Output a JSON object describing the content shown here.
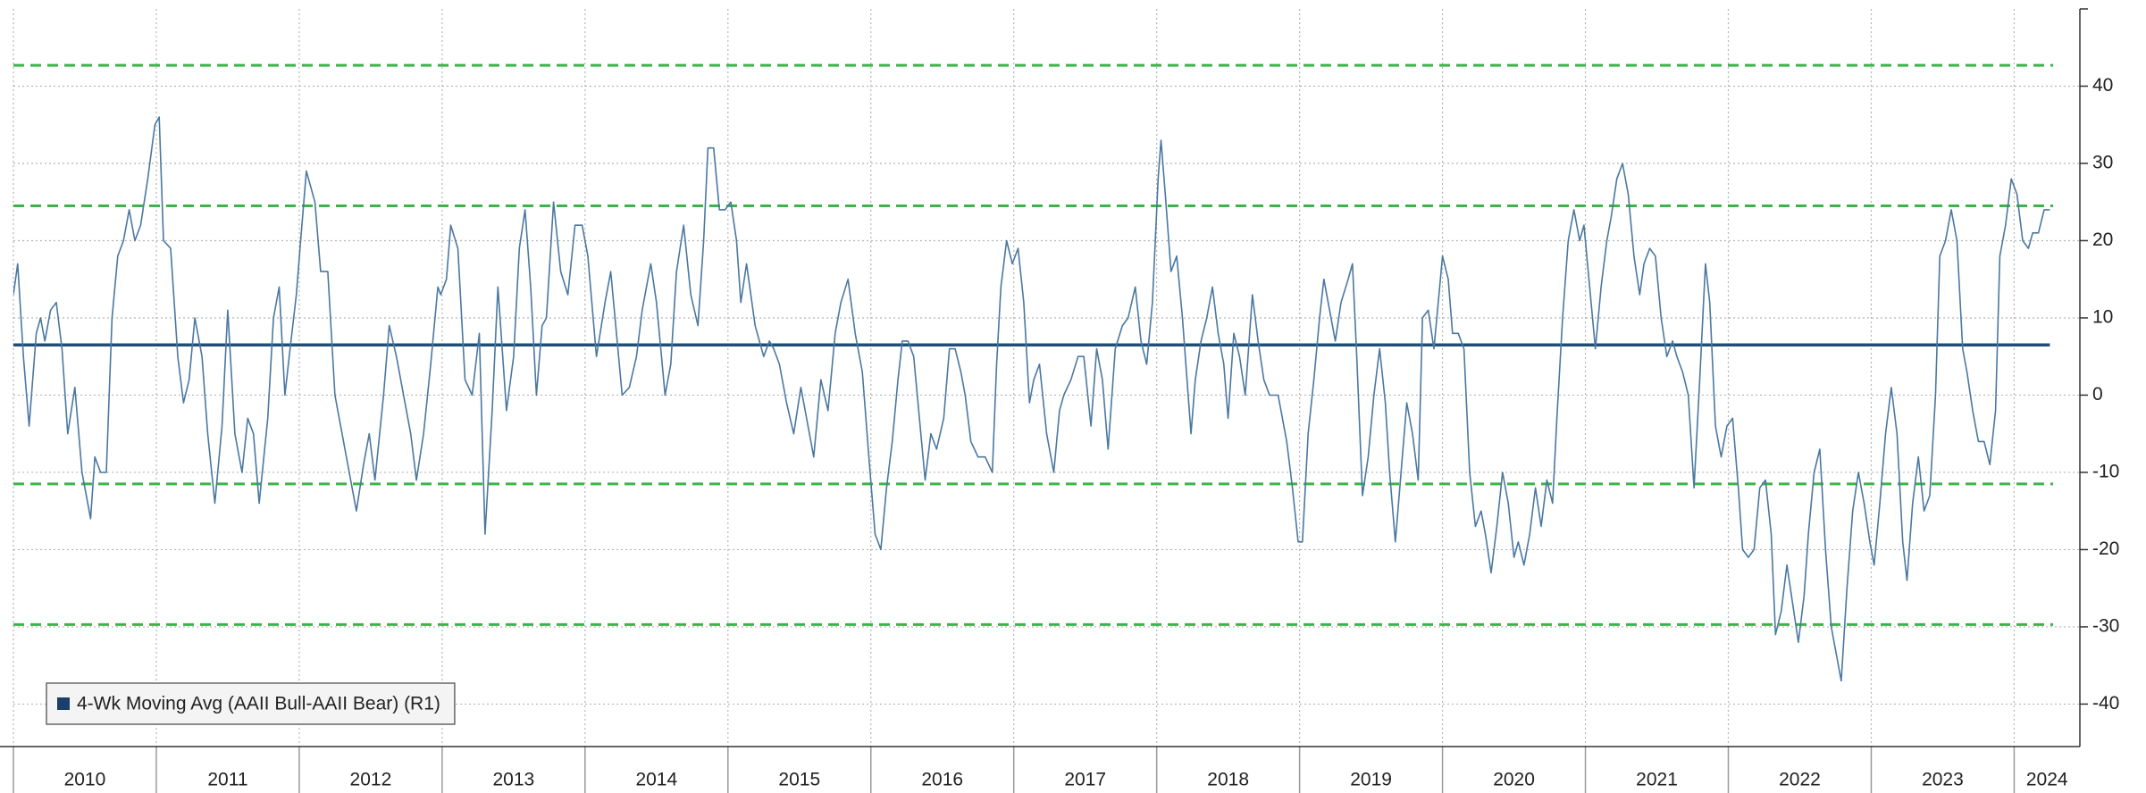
{
  "chart_data": {
    "type": "line",
    "xlim": [
      2010,
      2024.46
    ],
    "ylim": [
      -45.5,
      50
    ],
    "xticks": [
      2010,
      2011,
      2012,
      2013,
      2014,
      2015,
      2016,
      2017,
      2018,
      2019,
      2020,
      2021,
      2022,
      2023,
      2024
    ],
    "yticks": [
      -40,
      -30,
      -20,
      -10,
      0,
      10,
      20,
      30,
      40
    ],
    "grid": true,
    "legend": "lower left",
    "hlines": [
      {
        "value": 42.7,
        "color": "#3cb44b",
        "dashed": true
      },
      {
        "value": 24.5,
        "color": "#3cb44b",
        "dashed": true
      },
      {
        "value": 6.5,
        "color": "#1f4e79",
        "dashed": false
      },
      {
        "value": -11.5,
        "color": "#3cb44b",
        "dashed": true
      },
      {
        "value": -29.7,
        "color": "#3cb44b",
        "dashed": true
      }
    ],
    "series": [
      {
        "name": "4-Wk Moving Avg (AAII Bull-AAII Bear) (R1)",
        "color": "#4a78a0",
        "legend_color": "#1b3f6b",
        "x": [
          2010.0,
          2010.03,
          2010.07,
          2010.11,
          2010.16,
          2010.19,
          2010.22,
          2010.26,
          2010.3,
          2010.34,
          2010.38,
          2010.43,
          2010.48,
          2010.54,
          2010.57,
          2010.61,
          2010.65,
          2010.69,
          2010.73,
          2010.77,
          2010.81,
          2010.85,
          2010.89,
          2010.94,
          2010.99,
          2011.02,
          2011.05,
          2011.1,
          2011.15,
          2011.19,
          2011.23,
          2011.27,
          2011.32,
          2011.36,
          2011.41,
          2011.46,
          2011.5,
          2011.55,
          2011.6,
          2011.64,
          2011.68,
          2011.72,
          2011.78,
          2011.82,
          2011.86,
          2011.9,
          2011.93,
          2011.98,
          2012.01,
          2012.05,
          2012.11,
          2012.15,
          2012.2,
          2012.25,
          2012.31,
          2012.36,
          2012.4,
          2012.45,
          2012.49,
          2012.53,
          2012.59,
          2012.63,
          2012.68,
          2012.73,
          2012.78,
          2012.82,
          2012.87,
          2012.92,
          2012.97,
          2012.99,
          2013.03,
          2013.06,
          2013.11,
          2013.16,
          2013.21,
          2013.26,
          2013.3,
          2013.35,
          2013.39,
          2013.45,
          2013.5,
          2013.54,
          2013.58,
          2013.62,
          2013.66,
          2013.7,
          2013.73,
          2013.78,
          2013.83,
          2013.88,
          2013.93,
          2013.98,
          2014.02,
          2014.08,
          2014.14,
          2014.18,
          2014.21,
          2014.26,
          2014.31,
          2014.36,
          2014.4,
          2014.46,
          2014.5,
          2014.56,
          2014.6,
          2014.64,
          2014.69,
          2014.74,
          2014.79,
          2014.83,
          2014.86,
          2014.9,
          2014.94,
          2014.98,
          2015.02,
          2015.06,
          2015.09,
          2015.13,
          2015.19,
          2015.25,
          2015.29,
          2015.32,
          2015.36,
          2015.41,
          2015.46,
          2015.51,
          2015.55,
          2015.6,
          2015.65,
          2015.7,
          2015.75,
          2015.79,
          2015.84,
          2015.89,
          2015.94,
          2015.99,
          2016.03,
          2016.07,
          2016.11,
          2016.15,
          2016.19,
          2016.22,
          2016.26,
          2016.3,
          2016.34,
          2016.38,
          2016.42,
          2016.46,
          2016.51,
          2016.55,
          2016.59,
          2016.63,
          2016.66,
          2016.7,
          2016.75,
          2016.8,
          2016.85,
          2016.88,
          2016.91,
          2016.95,
          2016.99,
          2017.03,
          2017.07,
          2017.11,
          2017.14,
          2017.18,
          2017.23,
          2017.28,
          2017.32,
          2017.35,
          2017.4,
          2017.45,
          2017.49,
          2017.54,
          2017.58,
          2017.62,
          2017.66,
          2017.71,
          2017.76,
          2017.8,
          2017.85,
          2017.89,
          2017.93,
          2017.97,
          2018.01,
          2018.03,
          2018.06,
          2018.1,
          2018.14,
          2018.18,
          2018.24,
          2018.27,
          2018.31,
          2018.35,
          2018.39,
          2018.43,
          2018.47,
          2018.5,
          2018.54,
          2018.58,
          2018.62,
          2018.67,
          2018.71,
          2018.75,
          2018.79,
          2018.85,
          2018.91,
          2018.95,
          2018.99,
          2019.02,
          2019.06,
          2019.1,
          2019.14,
          2019.17,
          2019.21,
          2019.25,
          2019.29,
          2019.34,
          2019.37,
          2019.4,
          2019.44,
          2019.48,
          2019.52,
          2019.56,
          2019.6,
          2019.63,
          2019.67,
          2019.71,
          2019.75,
          2019.79,
          2019.83,
          2019.86,
          2019.9,
          2019.94,
          2019.98,
          2020.0,
          2020.04,
          2020.07,
          2020.11,
          2020.15,
          2020.19,
          2020.23,
          2020.27,
          2020.3,
          2020.34,
          2020.38,
          2020.42,
          2020.46,
          2020.5,
          2020.53,
          2020.57,
          2020.61,
          2020.65,
          2020.69,
          2020.73,
          2020.77,
          2020.8,
          2020.84,
          2020.88,
          2020.92,
          2020.96,
          2020.99,
          2021.03,
          2021.07,
          2021.11,
          2021.15,
          2021.18,
          2021.22,
          2021.26,
          2021.3,
          2021.34,
          2021.38,
          2021.41,
          2021.45,
          2021.49,
          2021.53,
          2021.57,
          2021.61,
          2021.64,
          2021.68,
          2021.72,
          2021.76,
          2021.8,
          2021.84,
          2021.87,
          2021.91,
          2021.95,
          2021.99,
          2022.03,
          2022.07,
          2022.1,
          2022.14,
          2022.18,
          2022.22,
          2022.26,
          2022.3,
          2022.33,
          2022.37,
          2022.41,
          2022.45,
          2022.49,
          2022.53,
          2022.56,
          2022.6,
          2022.64,
          2022.68,
          2022.72,
          2022.76,
          2022.79,
          2022.83,
          2022.87,
          2022.91,
          2022.95,
          2022.99,
          2023.02,
          2023.06,
          2023.1,
          2023.14,
          2023.18,
          2023.22,
          2023.25,
          2023.29,
          2023.33,
          2023.37,
          2023.41,
          2023.45,
          2023.48,
          2023.52,
          2023.56,
          2023.6,
          2023.64,
          2023.67,
          2023.71,
          2023.75,
          2023.79,
          2023.83,
          2023.87,
          2023.9,
          2023.94,
          2023.98,
          2024.02,
          2024.06,
          2024.1,
          2024.13,
          2024.17,
          2024.21,
          2024.25
        ],
        "values": [
          13,
          17,
          5,
          -4,
          8,
          10,
          7,
          11,
          12,
          6,
          -5,
          1,
          -10,
          -16,
          -8,
          -10,
          -10,
          10,
          18,
          20,
          24,
          20,
          22,
          28,
          35,
          36,
          20,
          19,
          5,
          -1,
          2,
          10,
          5,
          -5,
          -14,
          -4,
          11,
          -5,
          -10,
          -3,
          -5,
          -14,
          -3,
          10,
          14,
          0,
          5,
          13,
          20,
          29,
          25,
          16,
          16,
          0,
          -6,
          -11,
          -15,
          -9,
          -5,
          -11,
          0,
          9,
          5,
          0,
          -5,
          -11,
          -5,
          4,
          14,
          13,
          15,
          22,
          19,
          2,
          0,
          8,
          -18,
          -2,
          14,
          -2,
          5,
          19,
          24,
          14,
          0,
          9,
          10,
          25,
          16,
          13,
          22,
          22,
          18,
          5,
          12,
          16,
          10,
          0,
          1,
          5,
          11,
          17,
          12,
          0,
          4,
          16,
          22,
          13,
          9,
          20,
          32,
          32,
          24,
          24,
          25,
          20,
          12,
          17,
          9,
          5,
          7,
          6,
          4,
          -1,
          -5,
          1,
          -3,
          -8,
          2,
          -2,
          8,
          12,
          15,
          8,
          3,
          -9,
          -18,
          -20,
          -12,
          -6,
          2,
          7,
          7,
          5,
          -3,
          -11,
          -5,
          -7,
          -3,
          6,
          6,
          3,
          0,
          -6,
          -8,
          -8,
          -10,
          4,
          14,
          20,
          17,
          19,
          12,
          -1,
          2,
          4,
          -5,
          -10,
          -2,
          0,
          2,
          5,
          5,
          -4,
          6,
          2,
          -7,
          6,
          9,
          10,
          14,
          7,
          4,
          12,
          28,
          33,
          26,
          16,
          18,
          10,
          -5,
          2,
          7,
          10,
          14,
          8,
          4,
          -3,
          8,
          5,
          0,
          13,
          7,
          2,
          0,
          0,
          -6,
          -12,
          -19,
          -19,
          -5,
          2,
          10,
          15,
          11,
          7,
          12,
          15,
          17,
          5,
          -13,
          -8,
          0,
          6,
          -1,
          -10,
          -19,
          -10,
          -1,
          -5,
          -11,
          10,
          11,
          6,
          14,
          18,
          15,
          8,
          8,
          6,
          -10,
          -17,
          -15,
          -18,
          -23,
          -17,
          -10,
          -14,
          -21,
          -19,
          -22,
          -18,
          -12,
          -17,
          -11,
          -14,
          -3,
          10,
          20,
          24,
          20,
          22,
          14,
          6,
          14,
          20,
          23,
          28,
          30,
          26,
          18,
          13,
          17,
          19,
          18,
          10,
          5,
          7,
          5,
          3,
          0,
          -12,
          2,
          17,
          12,
          -4,
          -8,
          -4,
          -3,
          -12,
          -20,
          -21,
          -20,
          -12,
          -11,
          -18,
          -31,
          -28,
          -22,
          -27,
          -32,
          -26,
          -18,
          -10,
          -7,
          -20,
          -30,
          -34,
          -37,
          -25,
          -15,
          -10,
          -14,
          -19,
          -22,
          -14,
          -5,
          1,
          -5,
          -19,
          -24,
          -14,
          -8,
          -15,
          -13,
          0,
          18,
          20,
          24,
          20,
          6,
          3,
          -2,
          -6,
          -6,
          -9,
          -2,
          18,
          22,
          28,
          26,
          20,
          19,
          21,
          21,
          24,
          24
        ]
      }
    ]
  }
}
